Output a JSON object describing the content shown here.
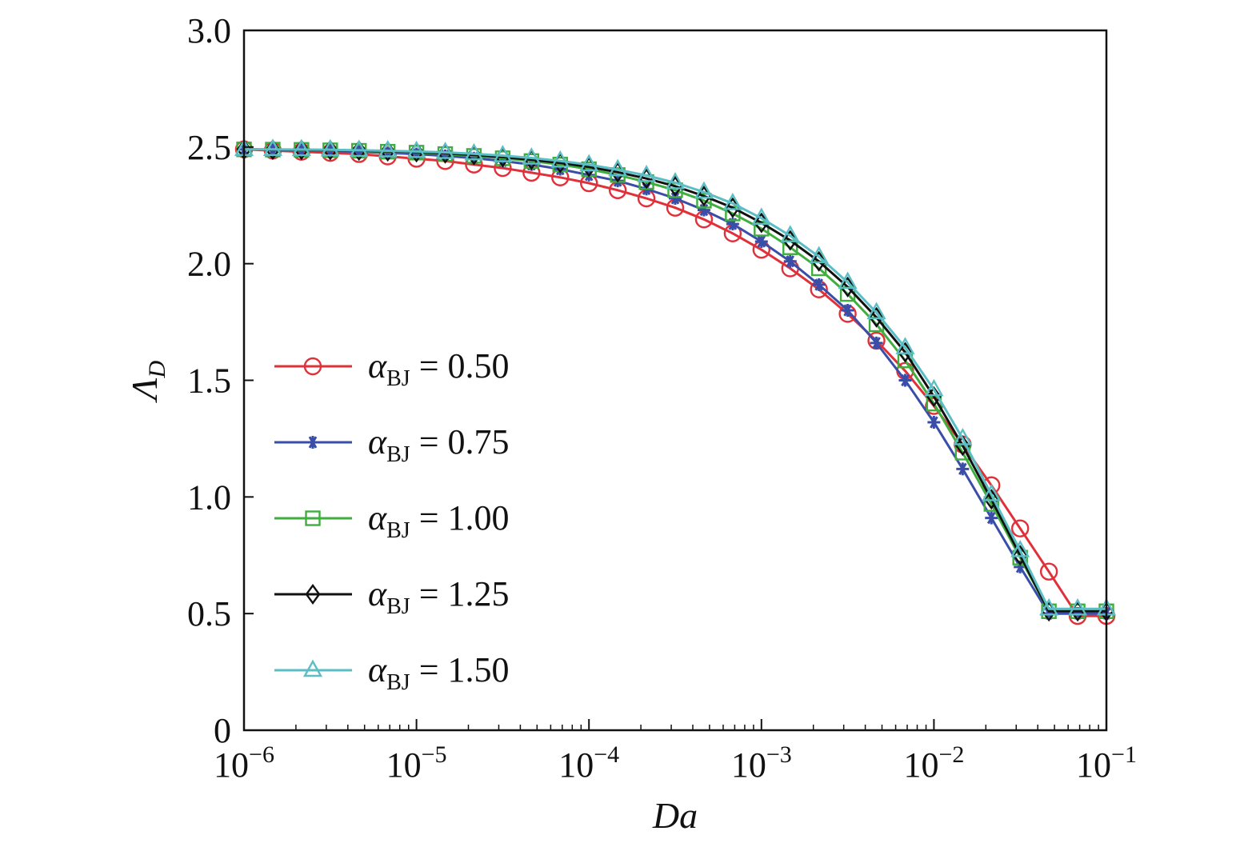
{
  "chart_data": {
    "type": "line",
    "xscale": "log",
    "xlim": [
      1e-06,
      0.1
    ],
    "ylim": [
      0,
      3.0
    ],
    "xlabel": "Da",
    "ylabel_symbol": "Λ",
    "ylabel_subscript": "D",
    "x_ticks": [
      1e-06,
      1e-05,
      0.0001,
      0.001,
      0.01,
      0.1
    ],
    "x_tick_labels": [
      {
        "base": "10",
        "exp": "−6"
      },
      {
        "base": "10",
        "exp": "−5"
      },
      {
        "base": "10",
        "exp": "−4"
      },
      {
        "base": "10",
        "exp": "−3"
      },
      {
        "base": "10",
        "exp": "−2"
      },
      {
        "base": "10",
        "exp": "−1"
      }
    ],
    "y_ticks": [
      0,
      0.5,
      1.0,
      1.5,
      2.0,
      2.5,
      3.0
    ],
    "y_tick_labels": [
      "0",
      "0.5",
      "1.0",
      "1.5",
      "2.0",
      "2.5",
      "3.0"
    ],
    "x": [
      1e-06,
      1.468e-06,
      2.154e-06,
      3.162e-06,
      4.642e-06,
      6.813e-06,
      1e-05,
      1.468e-05,
      2.154e-05,
      3.162e-05,
      4.642e-05,
      6.813e-05,
      0.0001,
      0.0001468,
      0.0002154,
      0.0003162,
      0.0004642,
      0.0006813,
      0.001,
      0.001468,
      0.002154,
      0.003162,
      0.004642,
      0.006813,
      0.01,
      0.01468,
      0.02154,
      0.03162,
      0.04642,
      0.06813,
      0.1
    ],
    "series": [
      {
        "name": "α_BJ = 0.50",
        "legend_symbol": "α",
        "legend_subscript": "BJ",
        "legend_value": " = 0.50",
        "color": "#e0303a",
        "marker": "circle",
        "values": [
          2.49,
          2.485,
          2.48,
          2.475,
          2.47,
          2.46,
          2.45,
          2.44,
          2.425,
          2.41,
          2.39,
          2.37,
          2.345,
          2.315,
          2.28,
          2.24,
          2.19,
          2.13,
          2.06,
          1.98,
          1.89,
          1.785,
          1.67,
          1.54,
          1.39,
          1.225,
          1.05,
          0.865,
          0.68,
          0.49,
          0.49
        ]
      },
      {
        "name": "α_BJ = 0.75",
        "legend_symbol": "α",
        "legend_subscript": "BJ",
        "legend_value": " = 0.75",
        "color": "#3a4ea8",
        "marker": "asterisk",
        "values": [
          2.49,
          2.488,
          2.486,
          2.484,
          2.48,
          2.475,
          2.47,
          2.462,
          2.452,
          2.44,
          2.425,
          2.405,
          2.38,
          2.355,
          2.32,
          2.28,
          2.23,
          2.17,
          2.095,
          2.01,
          1.91,
          1.8,
          1.66,
          1.5,
          1.32,
          1.12,
          0.91,
          0.7,
          0.5,
          0.5,
          0.5
        ]
      },
      {
        "name": "α_BJ = 1.00",
        "legend_symbol": "α",
        "legend_subscript": "BJ",
        "legend_value": " = 1.00",
        "color": "#3fae3f",
        "marker": "square",
        "values": [
          2.49,
          2.489,
          2.488,
          2.486,
          2.484,
          2.48,
          2.476,
          2.47,
          2.462,
          2.452,
          2.44,
          2.425,
          2.405,
          2.38,
          2.35,
          2.315,
          2.27,
          2.215,
          2.15,
          2.07,
          1.98,
          1.87,
          1.74,
          1.585,
          1.4,
          1.19,
          0.97,
          0.74,
          0.51,
          0.51,
          0.51
        ]
      },
      {
        "name": "α_BJ = 1.25",
        "legend_symbol": "α",
        "legend_subscript": "BJ",
        "legend_value": " = 1.25",
        "color": "#111111",
        "marker": "diamond",
        "values": [
          2.49,
          2.489,
          2.488,
          2.487,
          2.485,
          2.482,
          2.478,
          2.473,
          2.466,
          2.457,
          2.446,
          2.432,
          2.415,
          2.392,
          2.365,
          2.332,
          2.29,
          2.24,
          2.175,
          2.1,
          2.01,
          1.9,
          1.77,
          1.62,
          1.43,
          1.22,
          0.99,
          0.75,
          0.51,
          0.51,
          0.51
        ]
      },
      {
        "name": "α_BJ = 1.50",
        "legend_symbol": "α",
        "legend_subscript": "BJ",
        "legend_value": " = 1.50",
        "color": "#5bbec4",
        "marker": "triangle",
        "values": [
          2.49,
          2.49,
          2.489,
          2.488,
          2.486,
          2.484,
          2.481,
          2.477,
          2.471,
          2.463,
          2.453,
          2.44,
          2.424,
          2.403,
          2.378,
          2.347,
          2.307,
          2.258,
          2.195,
          2.12,
          2.03,
          1.92,
          1.79,
          1.64,
          1.46,
          1.25,
          1.01,
          0.77,
          0.52,
          0.52,
          0.52
        ]
      }
    ]
  }
}
